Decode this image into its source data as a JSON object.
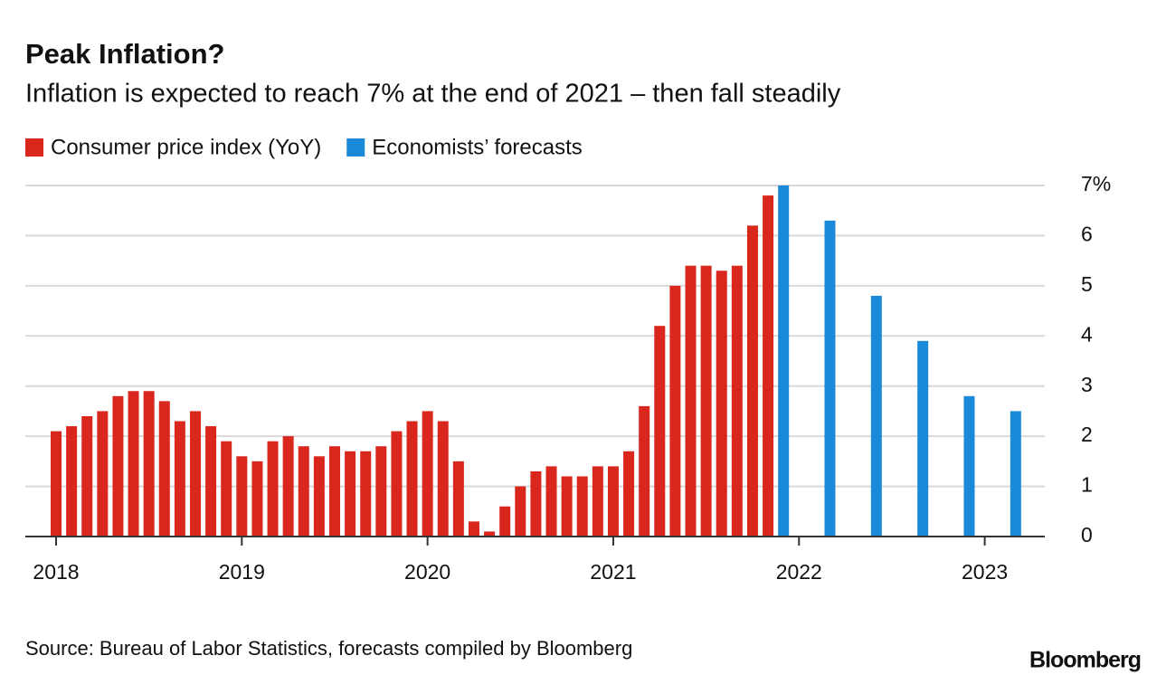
{
  "chart_data": {
    "type": "bar",
    "title": "Peak Inflation?",
    "subtitle": "Inflation is expected to reach 7% at the end of 2021 – then fall steadily",
    "source": "Source: Bureau of Labor Statistics, forecasts compiled by Bloomberg",
    "logo": "Bloomberg",
    "categories": [
      "2018",
      null,
      null,
      null,
      null,
      null,
      null,
      null,
      null,
      null,
      null,
      null,
      "2019",
      null,
      null,
      null,
      null,
      null,
      null,
      null,
      null,
      null,
      null,
      null,
      "2020",
      null,
      null,
      null,
      null,
      null,
      null,
      null,
      null,
      null,
      null,
      null,
      "2021",
      null,
      null,
      null,
      null,
      null,
      null,
      null,
      null,
      null,
      null,
      null,
      "2022",
      null,
      null,
      null,
      null,
      null,
      null,
      null,
      null,
      null,
      null,
      null,
      "2023",
      null,
      null
    ],
    "series": [
      {
        "name": "Consumer price index (YoY)",
        "color": "#d9271d",
        "values": [
          2.1,
          2.2,
          2.4,
          2.5,
          2.8,
          2.9,
          2.9,
          2.7,
          2.3,
          2.5,
          2.2,
          1.9,
          1.6,
          1.5,
          1.9,
          2.0,
          1.8,
          1.6,
          1.8,
          1.7,
          1.7,
          1.8,
          2.1,
          2.3,
          2.5,
          2.3,
          1.5,
          0.3,
          0.1,
          0.6,
          1.0,
          1.3,
          1.4,
          1.2,
          1.2,
          1.4,
          1.4,
          1.7,
          2.6,
          4.2,
          5.0,
          5.4,
          5.4,
          5.3,
          5.4,
          6.2,
          6.8,
          null,
          null,
          null,
          null,
          null,
          null,
          null,
          null,
          null,
          null,
          null,
          null,
          null,
          null,
          null,
          null
        ]
      },
      {
        "name": "Economists’ forecasts",
        "color": "#1a8ad8",
        "values": [
          null,
          null,
          null,
          null,
          null,
          null,
          null,
          null,
          null,
          null,
          null,
          null,
          null,
          null,
          null,
          null,
          null,
          null,
          null,
          null,
          null,
          null,
          null,
          null,
          null,
          null,
          null,
          null,
          null,
          null,
          null,
          null,
          null,
          null,
          null,
          null,
          null,
          null,
          null,
          null,
          null,
          null,
          null,
          null,
          null,
          null,
          null,
          7.0,
          null,
          null,
          6.3,
          null,
          null,
          4.8,
          null,
          null,
          3.9,
          null,
          null,
          2.8,
          null,
          null,
          2.5
        ]
      }
    ],
    "ylim": [
      0,
      7
    ],
    "yticks": [
      0,
      1,
      2,
      3,
      4,
      5,
      6,
      {
        "value": 7,
        "label": "7%"
      }
    ],
    "grid": true
  }
}
